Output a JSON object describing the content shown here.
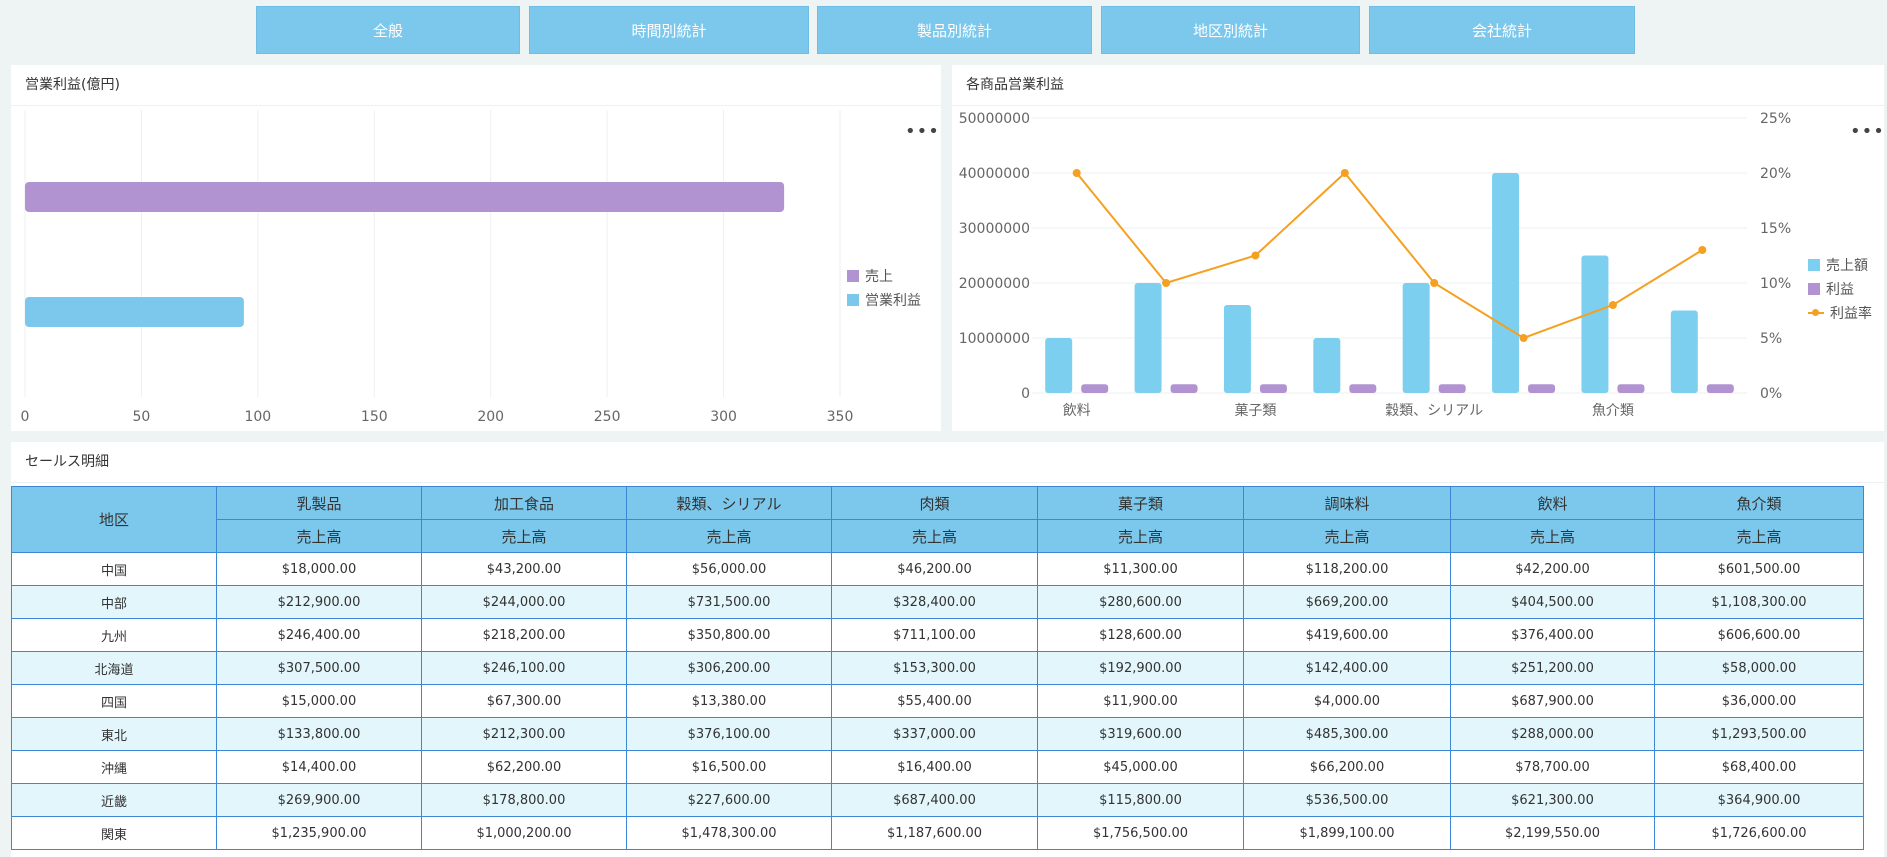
{
  "tabs": [
    "全般",
    "時間別統計",
    "製品別統計",
    "地区別統計",
    "会社統計"
  ],
  "left_panel": {
    "title": "営業利益(億円)",
    "more": "•••",
    "colors": {
      "sales": "#b193d2",
      "profit": "#7cc8ec"
    },
    "legend": [
      "売上",
      "営業利益"
    ]
  },
  "right_panel": {
    "title": "各商品営業利益",
    "more": "•••",
    "colors": {
      "sales": "#7dcff0",
      "profit": "#b193d2",
      "rate": "#f5a021"
    },
    "legend": [
      "売上額",
      "利益",
      "利益率"
    ]
  },
  "chart_data": [
    {
      "type": "bar",
      "orientation": "horizontal",
      "title": "営業利益(億円)",
      "categories": [
        "売上",
        "営業利益"
      ],
      "values": [
        326,
        94
      ],
      "xlim": [
        0,
        350
      ],
      "xticks": [
        0,
        50,
        100,
        150,
        200,
        250,
        300,
        350
      ],
      "legend": [
        "売上",
        "営業利益"
      ],
      "grid": true
    },
    {
      "type": "bar",
      "title": "各商品営業利益",
      "categories": [
        "飲料",
        "",
        "菓子類",
        "",
        "穀類、シリアル",
        "",
        "魚介類",
        ""
      ],
      "series": [
        {
          "name": "売上額",
          "type": "bar",
          "values": [
            10000000,
            20000000,
            16000000,
            10000000,
            20000000,
            40000000,
            25000000,
            15000000
          ]
        },
        {
          "name": "利益",
          "type": "bar",
          "values": [
            1600000,
            1600000,
            1600000,
            1600000,
            1600000,
            1600000,
            1600000,
            1600000
          ]
        },
        {
          "name": "利益率",
          "type": "line",
          "axis": "right",
          "values": [
            20,
            10,
            12.5,
            20,
            10,
            5,
            8,
            13
          ]
        }
      ],
      "ylim": [
        0,
        50000000
      ],
      "yticks": [
        "0",
        "10000000",
        "20000000",
        "30000000",
        "40000000",
        "50000000"
      ],
      "y2lim": [
        0,
        25
      ],
      "y2ticks": [
        "0%",
        "5%",
        "10%",
        "15%",
        "20%",
        "25%"
      ]
    }
  ],
  "table": {
    "title": "セールス明細",
    "region_header": "地区",
    "categories": [
      "乳製品",
      "加工食品",
      "穀類、シリアル",
      "肉類",
      "菓子類",
      "調味料",
      "飲料",
      "魚介類"
    ],
    "sub_header": "売上高",
    "rows": [
      {
        "region": "中国",
        "values": [
          "$18,000.00",
          "$43,200.00",
          "$56,000.00",
          "$46,200.00",
          "$11,300.00",
          "$118,200.00",
          "$42,200.00",
          "$601,500.00"
        ]
      },
      {
        "region": "中部",
        "values": [
          "$212,900.00",
          "$244,000.00",
          "$731,500.00",
          "$328,400.00",
          "$280,600.00",
          "$669,200.00",
          "$404,500.00",
          "$1,108,300.00"
        ]
      },
      {
        "region": "九州",
        "values": [
          "$246,400.00",
          "$218,200.00",
          "$350,800.00",
          "$711,100.00",
          "$128,600.00",
          "$419,600.00",
          "$376,400.00",
          "$606,600.00"
        ]
      },
      {
        "region": "北海道",
        "values": [
          "$307,500.00",
          "$246,100.00",
          "$306,200.00",
          "$153,300.00",
          "$192,900.00",
          "$142,400.00",
          "$251,200.00",
          "$58,000.00"
        ]
      },
      {
        "region": "四国",
        "values": [
          "$15,000.00",
          "$67,300.00",
          "$13,380.00",
          "$55,400.00",
          "$11,900.00",
          "$4,000.00",
          "$687,900.00",
          "$36,000.00"
        ]
      },
      {
        "region": "東北",
        "values": [
          "$133,800.00",
          "$212,300.00",
          "$376,100.00",
          "$337,000.00",
          "$319,600.00",
          "$485,300.00",
          "$288,000.00",
          "$1,293,500.00"
        ]
      },
      {
        "region": "沖縄",
        "values": [
          "$14,400.00",
          "$62,200.00",
          "$16,500.00",
          "$16,400.00",
          "$45,000.00",
          "$66,200.00",
          "$78,700.00",
          "$68,400.00"
        ]
      },
      {
        "region": "近畿",
        "values": [
          "$269,900.00",
          "$178,800.00",
          "$227,600.00",
          "$687,400.00",
          "$115,800.00",
          "$536,500.00",
          "$621,300.00",
          "$364,900.00"
        ]
      },
      {
        "region": "関東",
        "values": [
          "$1,235,900.00",
          "$1,000,200.00",
          "$1,478,300.00",
          "$1,187,600.00",
          "$1,756,500.00",
          "$1,899,100.00",
          "$2,199,550.00",
          "$1,726,600.00"
        ]
      }
    ]
  }
}
